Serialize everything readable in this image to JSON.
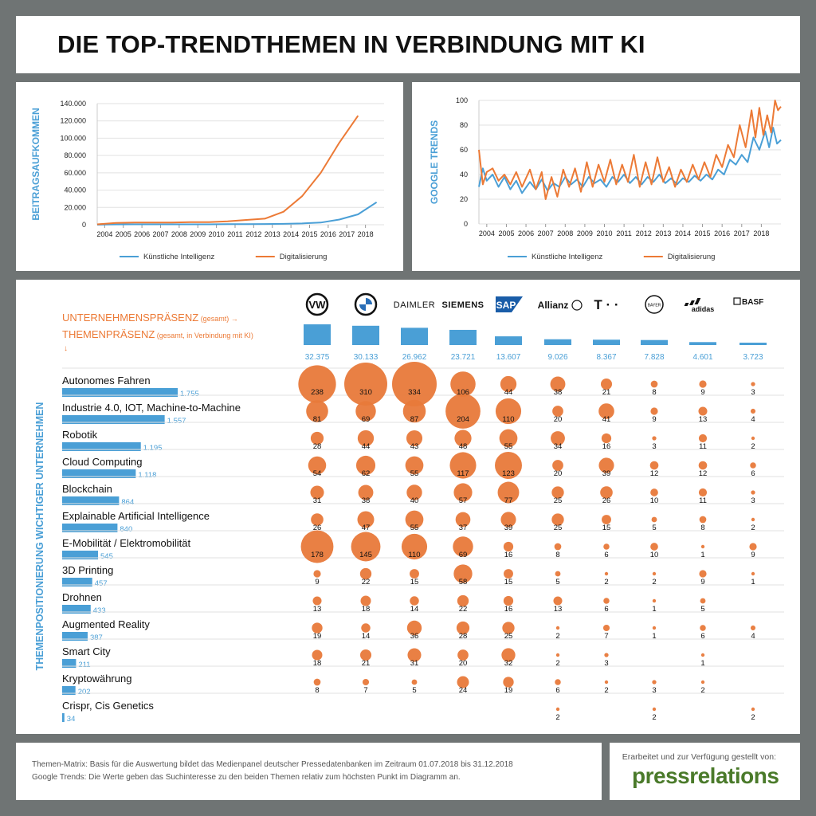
{
  "title": "DIE TOP-TRENDTHEMEN IN VERBINDUNG MIT KI",
  "colors": {
    "blue": "#4a9fd6",
    "orange": "#ec7a36",
    "bubble": "#e8793a",
    "ylabel": "#4a9fd6"
  },
  "legend": {
    "ki": "Künstliche Intelligenz",
    "dig": "Digitalisierung"
  },
  "chart_data": [
    {
      "type": "line",
      "ylabel": "BEITRAGSAUFKOMMEN",
      "x": [
        2004,
        2005,
        2006,
        2007,
        2008,
        2009,
        2010,
        2011,
        2012,
        2013,
        2014,
        2015,
        2016,
        2017,
        2018
      ],
      "xticks": [
        "2004",
        "2005",
        "2006",
        "2007",
        "2008",
        "2009",
        "2010",
        "2011",
        "2012",
        "2013",
        "2014",
        "2015",
        "2016",
        "2017",
        "2018"
      ],
      "yticks": [
        "0",
        "20.000",
        "40.000",
        "60.000",
        "80.000",
        "100.000",
        "120.000",
        "140.000"
      ],
      "ylim": [
        0,
        140000
      ],
      "series": [
        {
          "name": "Künstliche Intelligenz",
          "color": "#4a9fd6",
          "points": [
            [
              2003.6,
              0
            ],
            [
              2004.6,
              400
            ],
            [
              2005.6,
              500
            ],
            [
              2006.6,
              500
            ],
            [
              2007.6,
              500
            ],
            [
              2008.6,
              500
            ],
            [
              2009.6,
              500
            ],
            [
              2010.6,
              600
            ],
            [
              2011.6,
              700
            ],
            [
              2012.6,
              800
            ],
            [
              2013.6,
              1000
            ],
            [
              2014.6,
              1500
            ],
            [
              2015.6,
              2500
            ],
            [
              2016.6,
              6000
            ],
            [
              2017.6,
              12000
            ],
            [
              2018.6,
              26000
            ]
          ]
        },
        {
          "name": "Digitalisierung",
          "color": "#ec7a36",
          "points": [
            [
              2003.6,
              500
            ],
            [
              2004.6,
              2000
            ],
            [
              2005.6,
              2500
            ],
            [
              2006.6,
              2500
            ],
            [
              2007.6,
              2500
            ],
            [
              2008.6,
              3000
            ],
            [
              2009.6,
              3000
            ],
            [
              2010.6,
              4000
            ],
            [
              2011.6,
              5500
            ],
            [
              2012.6,
              7000
            ],
            [
              2013.6,
              15000
            ],
            [
              2014.6,
              33000
            ],
            [
              2015.6,
              60000
            ],
            [
              2016.6,
              95000
            ],
            [
              2017.6,
              126000
            ]
          ]
        }
      ]
    },
    {
      "type": "line",
      "ylabel": "GOOGLE TRENDS",
      "x": [
        2004,
        2005,
        2006,
        2007,
        2008,
        2009,
        2010,
        2011,
        2012,
        2013,
        2014,
        2015,
        2016,
        2017,
        2018
      ],
      "xticks": [
        "2004",
        "2005",
        "2006",
        "2007",
        "2008",
        "2009",
        "2010",
        "2011",
        "2012",
        "2013",
        "2014",
        "2015",
        "2016",
        "2017",
        "2018"
      ],
      "yticks": [
        "0",
        "20",
        "40",
        "60",
        "80",
        "100"
      ],
      "ylim": [
        0,
        100
      ],
      "series": [
        {
          "name": "Künstliche Intelligenz",
          "color": "#4a9fd6",
          "points": [
            [
              2003.6,
              30
            ],
            [
              2003.8,
              45
            ],
            [
              2004.0,
              35
            ],
            [
              2004.3,
              40
            ],
            [
              2004.6,
              30
            ],
            [
              2004.9,
              38
            ],
            [
              2005.2,
              28
            ],
            [
              2005.5,
              35
            ],
            [
              2005.8,
              25
            ],
            [
              2006.2,
              34
            ],
            [
              2006.5,
              28
            ],
            [
              2006.8,
              36
            ],
            [
              2007.1,
              27
            ],
            [
              2007.4,
              33
            ],
            [
              2007.7,
              30
            ],
            [
              2008.0,
              38
            ],
            [
              2008.3,
              32
            ],
            [
              2008.6,
              36
            ],
            [
              2008.9,
              30
            ],
            [
              2009.2,
              38
            ],
            [
              2009.5,
              33
            ],
            [
              2009.8,
              36
            ],
            [
              2010.1,
              30
            ],
            [
              2010.4,
              38
            ],
            [
              2010.7,
              34
            ],
            [
              2011.0,
              40
            ],
            [
              2011.3,
              33
            ],
            [
              2011.6,
              38
            ],
            [
              2011.9,
              32
            ],
            [
              2012.2,
              38
            ],
            [
              2012.5,
              34
            ],
            [
              2012.8,
              40
            ],
            [
              2013.1,
              33
            ],
            [
              2013.4,
              37
            ],
            [
              2013.7,
              32
            ],
            [
              2014.0,
              37
            ],
            [
              2014.3,
              34
            ],
            [
              2014.6,
              39
            ],
            [
              2014.9,
              35
            ],
            [
              2015.2,
              40
            ],
            [
              2015.5,
              36
            ],
            [
              2015.8,
              44
            ],
            [
              2016.1,
              40
            ],
            [
              2016.4,
              52
            ],
            [
              2016.7,
              48
            ],
            [
              2017.0,
              56
            ],
            [
              2017.3,
              50
            ],
            [
              2017.6,
              70
            ],
            [
              2017.9,
              60
            ],
            [
              2018.2,
              75
            ],
            [
              2018.4,
              62
            ],
            [
              2018.6,
              78
            ],
            [
              2018.8,
              65
            ],
            [
              2019.0,
              68
            ]
          ]
        },
        {
          "name": "Digitalisierung",
          "color": "#ec7a36",
          "points": [
            [
              2003.6,
              60
            ],
            [
              2003.8,
              32
            ],
            [
              2004.0,
              42
            ],
            [
              2004.3,
              45
            ],
            [
              2004.6,
              35
            ],
            [
              2004.9,
              40
            ],
            [
              2005.2,
              32
            ],
            [
              2005.5,
              42
            ],
            [
              2005.8,
              30
            ],
            [
              2006.2,
              44
            ],
            [
              2006.5,
              28
            ],
            [
              2006.8,
              42
            ],
            [
              2007.0,
              20
            ],
            [
              2007.3,
              38
            ],
            [
              2007.6,
              22
            ],
            [
              2007.9,
              44
            ],
            [
              2008.2,
              30
            ],
            [
              2008.5,
              45
            ],
            [
              2008.8,
              26
            ],
            [
              2009.1,
              50
            ],
            [
              2009.4,
              30
            ],
            [
              2009.7,
              48
            ],
            [
              2010.0,
              34
            ],
            [
              2010.3,
              52
            ],
            [
              2010.6,
              32
            ],
            [
              2010.9,
              48
            ],
            [
              2011.2,
              34
            ],
            [
              2011.5,
              56
            ],
            [
              2011.8,
              30
            ],
            [
              2012.1,
              50
            ],
            [
              2012.4,
              32
            ],
            [
              2012.7,
              54
            ],
            [
              2013.0,
              34
            ],
            [
              2013.3,
              46
            ],
            [
              2013.6,
              30
            ],
            [
              2013.9,
              44
            ],
            [
              2014.2,
              34
            ],
            [
              2014.5,
              48
            ],
            [
              2014.8,
              36
            ],
            [
              2015.1,
              50
            ],
            [
              2015.4,
              38
            ],
            [
              2015.7,
              56
            ],
            [
              2016.0,
              46
            ],
            [
              2016.3,
              64
            ],
            [
              2016.6,
              54
            ],
            [
              2016.9,
              80
            ],
            [
              2017.2,
              62
            ],
            [
              2017.5,
              92
            ],
            [
              2017.7,
              70
            ],
            [
              2017.9,
              94
            ],
            [
              2018.1,
              72
            ],
            [
              2018.3,
              88
            ],
            [
              2018.5,
              74
            ],
            [
              2018.7,
              100
            ],
            [
              2018.85,
              92
            ],
            [
              2019.0,
              95
            ]
          ]
        }
      ]
    },
    {
      "type": "bubble-matrix",
      "header_company": "UNTERNEHMENSPRÄSENZ",
      "header_company_sub": "(gesamt)",
      "header_topic": "THEMENPRÄSENZ",
      "header_topic_sub": "(gesamt, in Verbindung mit KI)",
      "ylabel": "THEMENPOSITIONIERUNG WICHTIGER UNTERNEHMEN",
      "companies": [
        "VW",
        "BMW",
        "DAIMLER",
        "SIEMENS",
        "SAP",
        "Allianz",
        "T · ·",
        "BAYER",
        "adidas",
        "BASF"
      ],
      "company_totals": [
        32375,
        30133,
        26962,
        23721,
        13607,
        9026,
        8367,
        7828,
        4601,
        3723
      ],
      "company_totals_text": [
        "32.375",
        "30.133",
        "26.962",
        "23.721",
        "13.607",
        "9.026",
        "8.367",
        "7.828",
        "4.601",
        "3.723"
      ],
      "topics": [
        {
          "name": "Autonomes Fahren",
          "total": 1755,
          "total_text": "1.755",
          "values": [
            238,
            310,
            334,
            106,
            44,
            38,
            21,
            8,
            9,
            3
          ]
        },
        {
          "name": "Industrie 4.0, IOT, Machine-to-Machine",
          "total": 1557,
          "total_text": "1.557",
          "values": [
            81,
            69,
            87,
            204,
            110,
            20,
            41,
            9,
            13,
            4
          ]
        },
        {
          "name": "Robotik",
          "total": 1195,
          "total_text": "1.195",
          "values": [
            28,
            44,
            43,
            48,
            55,
            34,
            16,
            3,
            11,
            2
          ]
        },
        {
          "name": "Cloud Computing",
          "total": 1118,
          "total_text": "1.118",
          "values": [
            54,
            62,
            55,
            117,
            123,
            20,
            39,
            12,
            12,
            6
          ]
        },
        {
          "name": "Blockchain",
          "total": 864,
          "total_text": "864",
          "values": [
            31,
            38,
            40,
            57,
            77,
            25,
            26,
            10,
            11,
            3
          ]
        },
        {
          "name": "Explainable Artificial Intelligence",
          "total": 840,
          "total_text": "840",
          "values": [
            26,
            47,
            55,
            37,
            39,
            25,
            15,
            5,
            8,
            2
          ]
        },
        {
          "name": "E-Mobilität / Elektromobilität",
          "total": 545,
          "total_text": "545",
          "values": [
            178,
            145,
            110,
            69,
            16,
            8,
            6,
            10,
            1,
            9
          ]
        },
        {
          "name": "3D Printing",
          "total": 457,
          "total_text": "457",
          "values": [
            9,
            22,
            15,
            58,
            15,
            5,
            2,
            2,
            9,
            1
          ]
        },
        {
          "name": "Drohnen",
          "total": 433,
          "total_text": "433",
          "values": [
            13,
            18,
            14,
            22,
            16,
            13,
            6,
            1,
            5,
            null
          ]
        },
        {
          "name": "Augmented Reality",
          "total": 387,
          "total_text": "387",
          "values": [
            19,
            14,
            36,
            28,
            25,
            2,
            7,
            1,
            6,
            4
          ]
        },
        {
          "name": "Smart City",
          "total": 211,
          "total_text": "211",
          "values": [
            18,
            21,
            31,
            20,
            32,
            2,
            3,
            null,
            1,
            null
          ]
        },
        {
          "name": "Kryptowährung",
          "total": 202,
          "total_text": "202",
          "values": [
            8,
            7,
            5,
            24,
            19,
            6,
            2,
            3,
            2,
            null
          ]
        },
        {
          "name": "Crispr, Cis Genetics",
          "total": 34,
          "total_text": "34",
          "values": [
            null,
            null,
            null,
            null,
            null,
            2,
            null,
            2,
            null,
            2
          ]
        }
      ]
    }
  ],
  "footer": {
    "note1": "Themen-Matrix: Basis für die Auswertung bildet das Medienpanel deutscher Pressedatenbanken im Zeitraum 01.07.2018 bis 31.12.2018",
    "note2": "Google Trends: Die Werte geben das Suchinteresse zu den beiden Themen relativ zum höchsten Punkt im Diagramm an.",
    "credit": "Erarbeitet und zur Verfügung gestellt von:",
    "brand": "pressrelations"
  }
}
